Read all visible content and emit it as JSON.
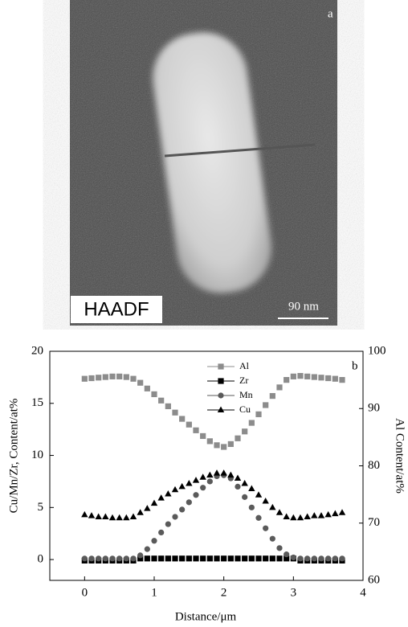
{
  "image": {
    "panel_label": "a",
    "overlay_label": "HAADF",
    "scale_bar": "90 nm"
  },
  "chart_data": {
    "type": "line",
    "annotations": [
      "b"
    ],
    "xlabel": "Distance/μm",
    "ylabel": "Cu/Mn/Zr, Content/at%",
    "y2label": "Al Content/at%",
    "xlim": [
      -0.5,
      4
    ],
    "xticks": [
      0,
      1,
      2,
      3,
      4
    ],
    "ylim": [
      -2,
      20
    ],
    "yticks": [
      0,
      5,
      10,
      15,
      20
    ],
    "y2lim": [
      60,
      100
    ],
    "y2ticks": [
      60,
      70,
      80,
      90,
      100
    ],
    "x": [
      0,
      0.1,
      0.2,
      0.3,
      0.4,
      0.5,
      0.6,
      0.7,
      0.8,
      0.9,
      1.0,
      1.1,
      1.2,
      1.3,
      1.4,
      1.5,
      1.6,
      1.7,
      1.8,
      1.9,
      2.0,
      2.1,
      2.2,
      2.3,
      2.4,
      2.5,
      2.6,
      2.7,
      2.8,
      2.9,
      3.0,
      3.1,
      3.2,
      3.3,
      3.4,
      3.5,
      3.6,
      3.7
    ],
    "series": [
      {
        "name": "Al",
        "color": "#8c8c8c",
        "marker": "square",
        "axis": "y2",
        "values": [
          95.2,
          95.3,
          95.4,
          95.5,
          95.6,
          95.6,
          95.5,
          95.2,
          94.5,
          93.5,
          92.5,
          91.4,
          90.4,
          89.3,
          88.2,
          87.2,
          86.2,
          85.2,
          84.3,
          83.6,
          83.3,
          83.8,
          84.8,
          86.0,
          87.5,
          89.0,
          90.6,
          92.2,
          93.7,
          95.0,
          95.6,
          95.7,
          95.6,
          95.5,
          95.4,
          95.3,
          95.2,
          95.0
        ]
      },
      {
        "name": "Zr",
        "color": "#000000",
        "marker": "square",
        "values": [
          -0.1,
          -0.1,
          -0.1,
          -0.1,
          -0.1,
          -0.1,
          -0.1,
          -0.1,
          0.1,
          0.1,
          0.1,
          0.1,
          0.1,
          0.1,
          0.1,
          0.1,
          0.1,
          0.1,
          0.1,
          0.1,
          0.1,
          0.1,
          0.1,
          0.1,
          0.1,
          0.1,
          0.1,
          0.1,
          0.1,
          0.1,
          0.1,
          -0.1,
          -0.1,
          -0.1,
          -0.1,
          -0.1,
          -0.1,
          -0.1
        ]
      },
      {
        "name": "Mn",
        "color": "#5a5a5a",
        "marker": "circle",
        "values": [
          0.1,
          0.1,
          0.1,
          0.1,
          0.1,
          0.1,
          0.1,
          0.1,
          0.4,
          1.0,
          1.8,
          2.6,
          3.4,
          4.1,
          4.8,
          5.5,
          6.2,
          6.9,
          7.5,
          8.0,
          8.1,
          7.8,
          7.0,
          6.0,
          5.0,
          4.0,
          3.0,
          2.0,
          1.1,
          0.5,
          0.2,
          0.1,
          0.1,
          0.1,
          0.1,
          0.1,
          0.1,
          0.1
        ]
      },
      {
        "name": "Cu",
        "color": "#000000",
        "marker": "triangle",
        "values": [
          4.3,
          4.2,
          4.1,
          4.1,
          4.0,
          4.0,
          4.0,
          4.1,
          4.5,
          4.9,
          5.4,
          5.9,
          6.3,
          6.7,
          7.0,
          7.3,
          7.6,
          7.9,
          8.1,
          8.3,
          8.3,
          8.1,
          7.8,
          7.3,
          6.8,
          6.2,
          5.6,
          5.0,
          4.5,
          4.1,
          4.0,
          4.0,
          4.1,
          4.2,
          4.2,
          4.3,
          4.4,
          4.5
        ]
      }
    ]
  }
}
